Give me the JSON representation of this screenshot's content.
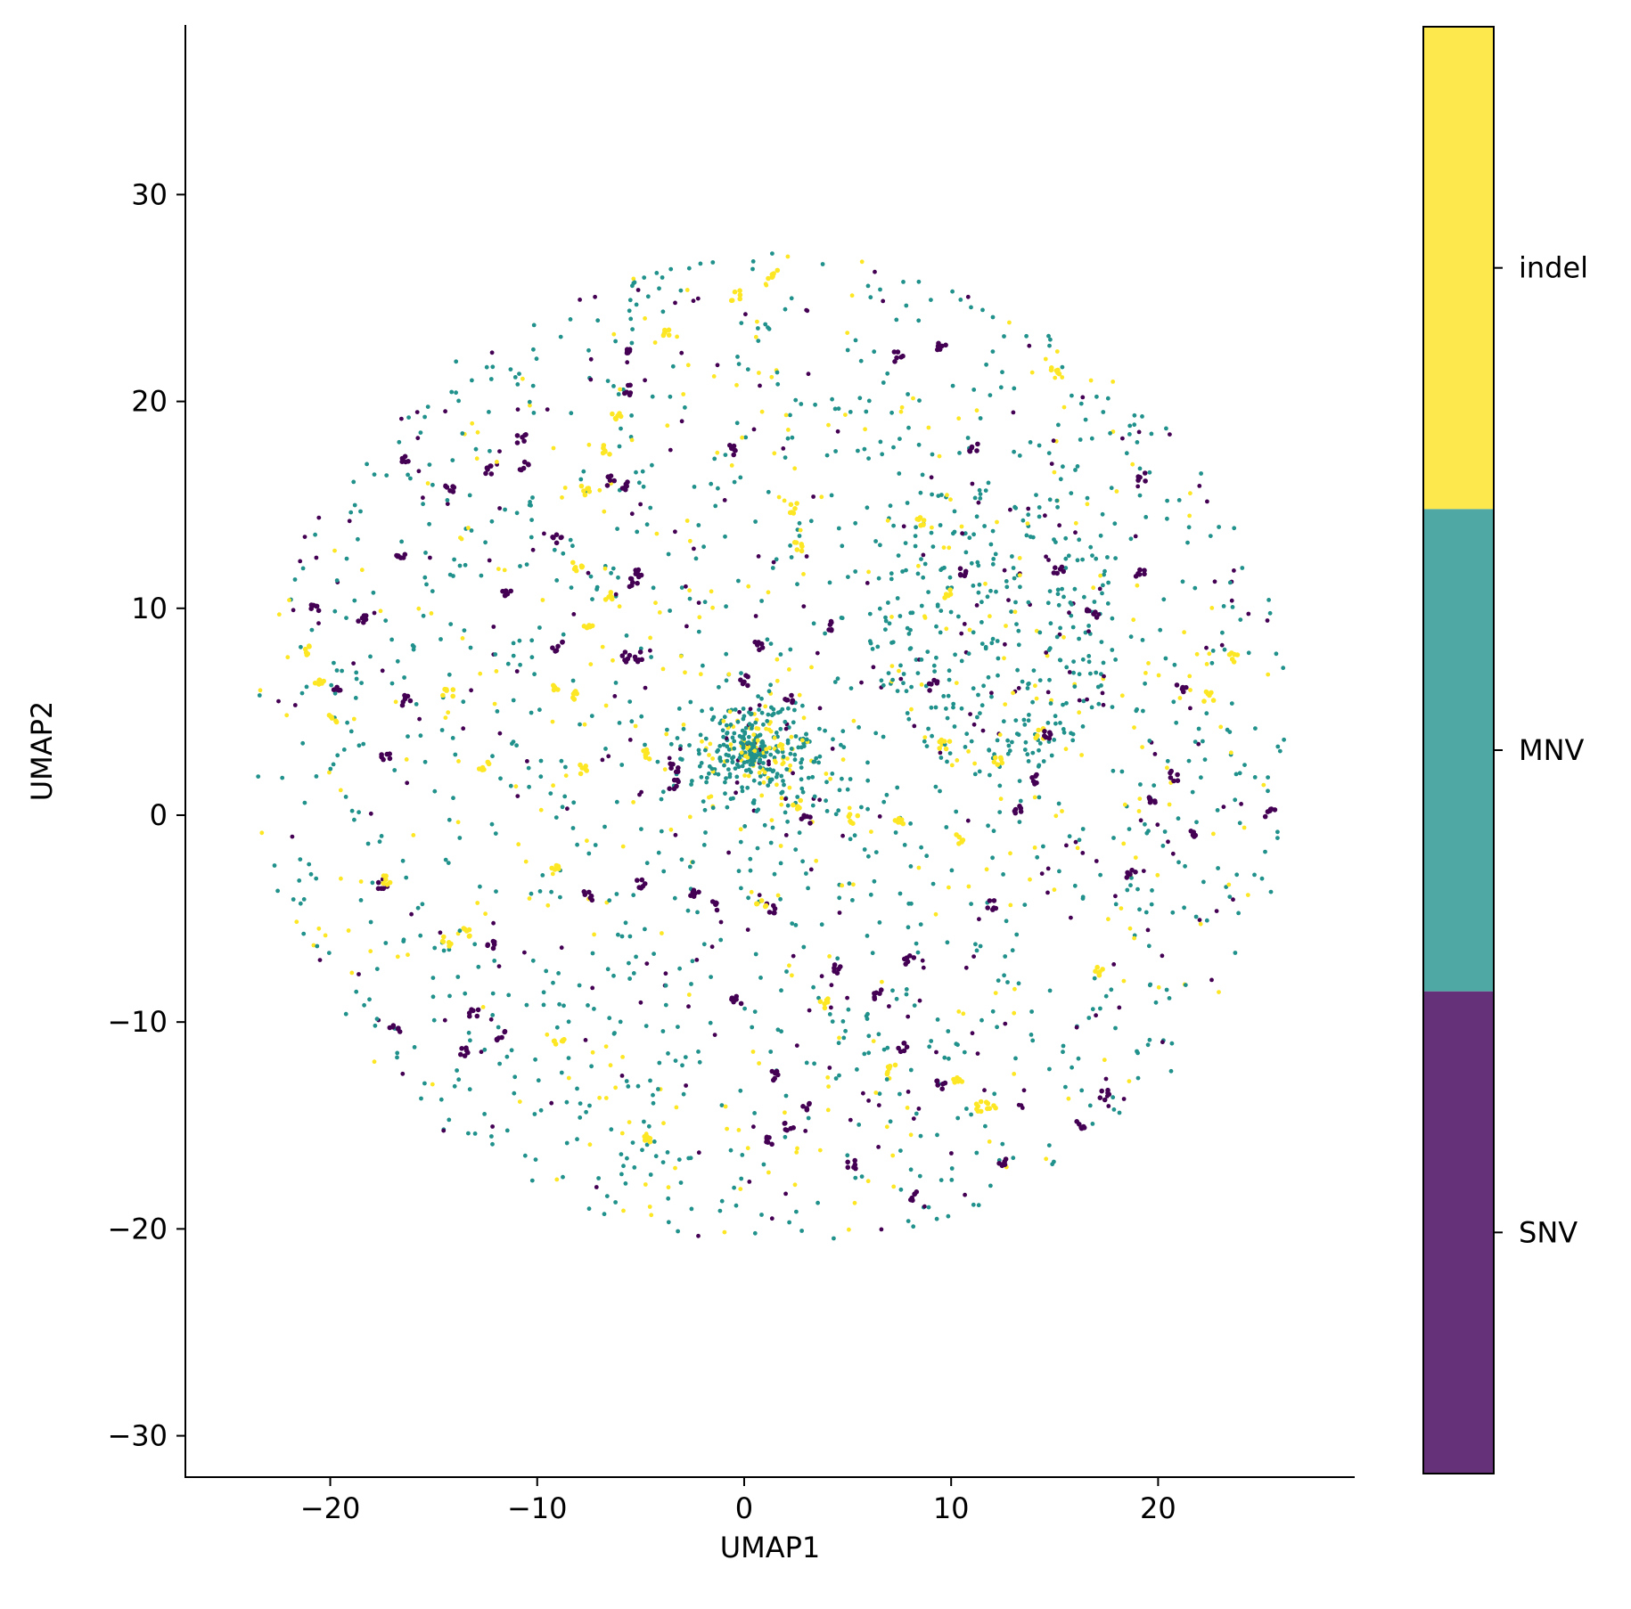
{
  "chart_data": {
    "type": "scatter",
    "title": "",
    "xlabel": "UMAP1",
    "ylabel": "UMAP2",
    "xlim": [
      -27,
      29.5
    ],
    "ylim": [
      -32,
      38.2
    ],
    "xticks": [
      -20,
      -10,
      0,
      10,
      20
    ],
    "yticks": [
      -30,
      -20,
      -10,
      0,
      10,
      20,
      30
    ],
    "xtick_labels": [
      "−20",
      "−10",
      "0",
      "10",
      "20"
    ],
    "ytick_labels": [
      "−30",
      "−20",
      "−10",
      "0",
      "10",
      "20",
      "30"
    ],
    "grid": false,
    "point_cloud": {
      "shape": "disc",
      "center": [
        1.5,
        3.2
      ],
      "radius": 24,
      "dense_core": [
        0.5,
        3.0
      ]
    },
    "series": [
      {
        "name": "SNV",
        "color": "#440154"
      },
      {
        "name": "MNV",
        "color": "#21918c"
      },
      {
        "name": "indel",
        "color": "#fde725"
      }
    ],
    "colorbar": {
      "labels": [
        "SNV",
        "MNV",
        "indel"
      ],
      "colors": [
        "#65327a",
        "#50a8a4",
        "#fde94d"
      ]
    }
  }
}
